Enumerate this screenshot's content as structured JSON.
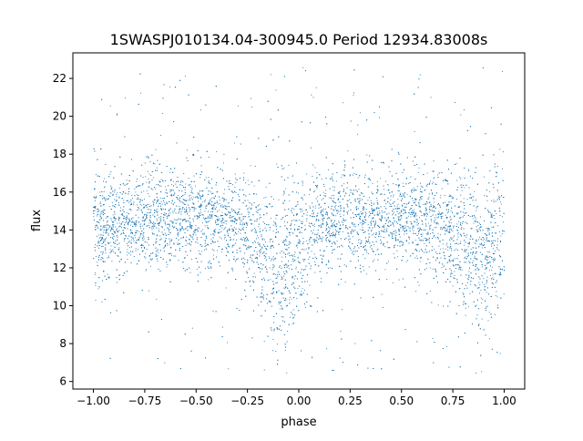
{
  "chart_data": {
    "type": "scatter",
    "title": "1SWASPJ010134.04-300945.0 Period 12934.83008s",
    "xlabel": "phase",
    "ylabel": "flux",
    "xlim": [
      -1.1,
      1.1
    ],
    "ylim": [
      5.6,
      23.35
    ],
    "xticks": [
      "−1.00",
      "−0.75",
      "−0.50",
      "−0.25",
      "0.00",
      "0.25",
      "0.50",
      "0.75",
      "1.00"
    ],
    "xtick_values": [
      -1,
      -0.75,
      -0.5,
      -0.25,
      0,
      0.25,
      0.5,
      0.75,
      1
    ],
    "yticks": [
      "6",
      "8",
      "10",
      "12",
      "14",
      "16",
      "18",
      "20",
      "22"
    ],
    "ytick_values": [
      6,
      8,
      10,
      12,
      14,
      16,
      18,
      20,
      22
    ],
    "grid": false,
    "color": "#1f77b4",
    "binned_median_flux": {
      "phase": [
        -1.0,
        -0.9,
        -0.8,
        -0.7,
        -0.6,
        -0.5,
        -0.4,
        -0.3,
        -0.2,
        -0.1,
        0.0,
        0.1,
        0.2,
        0.3,
        0.4,
        0.5,
        0.6,
        0.7,
        0.8,
        0.9,
        1.0
      ],
      "flux": [
        13.8,
        14.3,
        14.6,
        14.6,
        14.7,
        14.6,
        14.6,
        14.3,
        13.3,
        12.0,
        13.0,
        14.3,
        14.6,
        14.7,
        14.7,
        14.6,
        14.5,
        14.2,
        13.3,
        12.2,
        13.5
      ]
    },
    "scatter_std": 1.3,
    "flux_range": [
      6.4,
      22.6
    ],
    "phase_range": [
      -1.0,
      1.0
    ]
  }
}
